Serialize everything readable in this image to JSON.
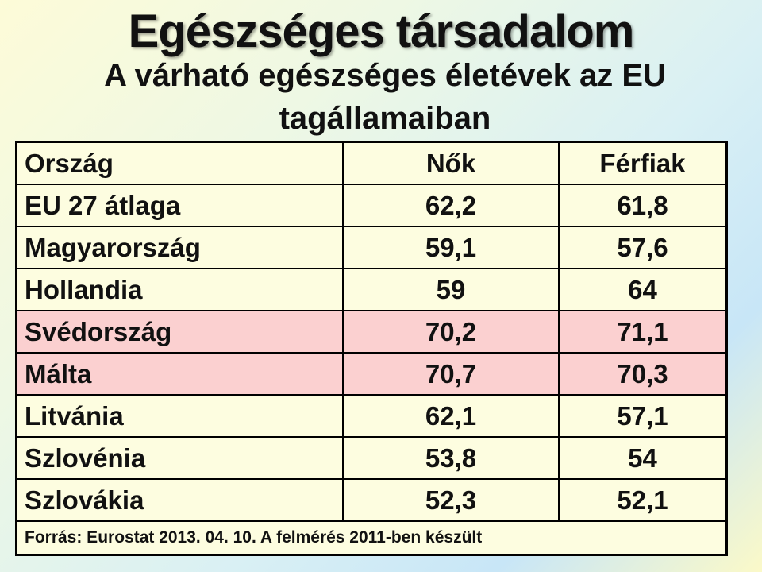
{
  "title": "Egészséges társadalom",
  "subtitle": "A várható egészséges életévek az EU tagállamaiban",
  "table": {
    "headers": [
      "Ország",
      "Nők",
      "Férfiak"
    ],
    "rows": [
      {
        "country": "EU 27 átlaga",
        "women": "62,2",
        "men": "61,8",
        "highlight": false
      },
      {
        "country": "Magyarország",
        "women": "59,1",
        "men": "57,6",
        "highlight": false
      },
      {
        "country": "Hollandia",
        "women": "59",
        "men": "64",
        "highlight": false
      },
      {
        "country": "Svédország",
        "women": "70,2",
        "men": "71,1",
        "highlight": true
      },
      {
        "country": "Málta",
        "women": "70,7",
        "men": "70,3",
        "highlight": true
      },
      {
        "country": "Litvánia",
        "women": "62,1",
        "men": "57,1",
        "highlight": false
      },
      {
        "country": "Szlovénia",
        "women": "53,8",
        "men": "54",
        "highlight": false
      },
      {
        "country": "Szlovákia",
        "women": "52,3",
        "men": "52,1",
        "highlight": false
      }
    ],
    "source": "Forrás: Eurostat 2013. 04. 10. A felmérés 2011-ben készült"
  },
  "colors": {
    "highlight_row": "#fbd0d0",
    "table_background": "#fdfde0"
  }
}
